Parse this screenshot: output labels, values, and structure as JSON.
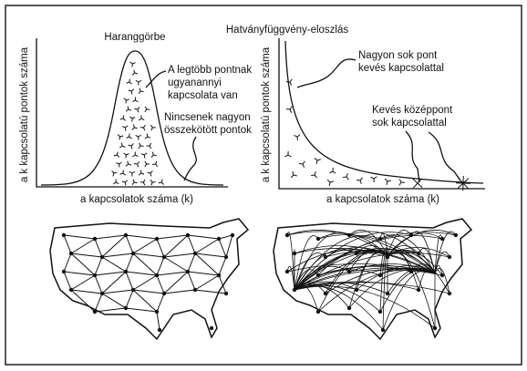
{
  "left_panel": {
    "title": "Haranggörbe",
    "y_label": "a k kapcsolatú pontok száma",
    "x_label": "a kapcsolatok száma (k)",
    "annotations": [
      "A legtöbb pontnak",
      "ugyanannyi",
      "kapcsolata van",
      "Nincsenek nagyon",
      "összekötött pontok"
    ]
  },
  "right_panel": {
    "title": "Hatványfüggvény-eloszlás",
    "y_label": "a k kapcsolatú pontok száma",
    "x_label": "a kapcsolatok száma (k)",
    "annotations": [
      "Nagyon sok pont",
      "kevés kapcsolattal",
      "Kevés középpont",
      "sok kapcsolattal"
    ]
  }
}
